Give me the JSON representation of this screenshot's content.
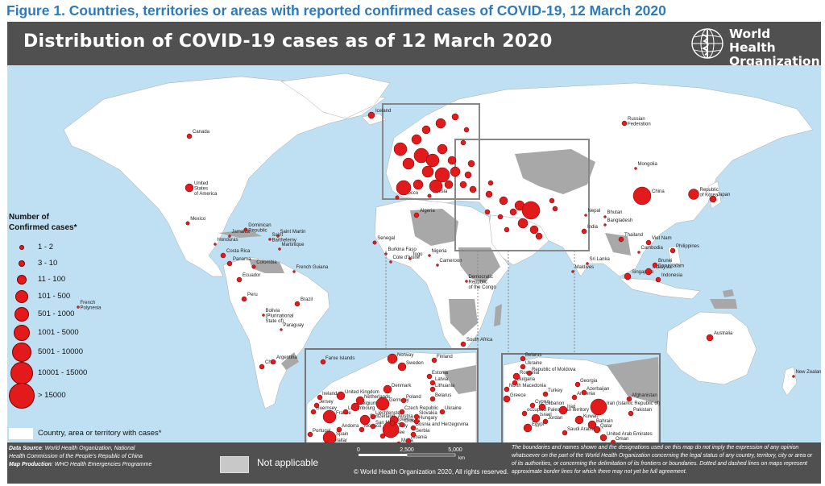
{
  "figure_title": "Figure 1. Countries, territories or areas with reported confirmed cases of COVID-19, 12 March 2020",
  "map_title": "Distribution of COVID-19  cases as of 12 March 2020",
  "organization": {
    "line1": "World Health",
    "line2": "Organization"
  },
  "colors": {
    "frame": "#505050",
    "ocean": "#bfe0f2",
    "land": "#ffffff",
    "not_applicable": "#a8a8a8",
    "case_marker": "#e31a1c"
  },
  "legend": {
    "title_line1": "Number of",
    "title_line2": "Confirmed cases*",
    "classes": [
      "1 - 2",
      "3 - 10",
      "11 - 100",
      "101 - 500",
      "501 - 1000",
      "1001 - 5000",
      "5001 - 10000",
      "10001 - 15000",
      "> 15000"
    ],
    "country_with_cases": "Country, area or territory with cases*"
  },
  "footer": {
    "source_label": "Data Source",
    "source_text": ": World Health Organization, National",
    "source_text2": "Health Commission of the People's Republic of China",
    "production_label": "Map Production",
    "production_text": ": WHO Health Emergencies Programme",
    "not_applicable": "Not applicable",
    "copyright": "© World Health Organization  2020,  All rights reserved.",
    "scale": {
      "t0": "0",
      "t1": "2,500",
      "t2": "5,000",
      "unit": "km"
    },
    "disclaimer": "The boundaries and names shown and the designations used on this map do not imply the expression of any opinion whatsoever on the part of the World Health Organization concerning the legal status of any country, territory, city or area or of its authorities, or concerning the delimitation of its frontiers or boundaries. Dotted and dashed lines on maps represent approximate border lines for which there may not yet be full agreement."
  },
  "countries": [
    {
      "name": "Iceland",
      "cls": 4
    },
    {
      "name": "Canada",
      "cls": 3
    },
    {
      "name": "United States of America",
      "cls": 5
    },
    {
      "name": "Mexico",
      "cls": 2
    },
    {
      "name": "Dominican Republic",
      "cls": 2
    },
    {
      "name": "Jamaica",
      "cls": 1
    },
    {
      "name": "Honduras",
      "cls": 1
    },
    {
      "name": "Saint Barthelemy",
      "cls": 1
    },
    {
      "name": "Saint Martin",
      "cls": 1
    },
    {
      "name": "Martinique",
      "cls": 1
    },
    {
      "name": "Costa Rica",
      "cls": 3
    },
    {
      "name": "Panama",
      "cls": 3
    },
    {
      "name": "Colombia",
      "cls": 2
    },
    {
      "name": "French Guiana",
      "cls": 1
    },
    {
      "name": "Ecuador",
      "cls": 3
    },
    {
      "name": "Peru",
      "cls": 3
    },
    {
      "name": "Bolivia (Plurinational State of)",
      "cls": 1
    },
    {
      "name": "Brazil",
      "cls": 3
    },
    {
      "name": "Paraguay",
      "cls": 1
    },
    {
      "name": "Chile",
      "cls": 3
    },
    {
      "name": "Argentina",
      "cls": 3
    },
    {
      "name": "French Polynesia",
      "cls": 1
    },
    {
      "name": "Morocco",
      "cls": 2
    },
    {
      "name": "Tunisia",
      "cls": 2
    },
    {
      "name": "Algeria",
      "cls": 3
    },
    {
      "name": "Senegal",
      "cls": 2
    },
    {
      "name": "Burkina Faso",
      "cls": 1
    },
    {
      "name": "Cote d'Ivoire",
      "cls": 1
    },
    {
      "name": "Togo",
      "cls": 1
    },
    {
      "name": "Nigeria",
      "cls": 1
    },
    {
      "name": "Cameroon",
      "cls": 1
    },
    {
      "name": "Democratic Republic of the Congo",
      "cls": 1
    },
    {
      "name": "South Africa",
      "cls": 3
    },
    {
      "name": "Russian Federation",
      "cls": 3
    },
    {
      "name": "Mongolia",
      "cls": 1
    },
    {
      "name": "China",
      "cls": 9
    },
    {
      "name": "Republic of Korea",
      "cls": 6
    },
    {
      "name": "Japan",
      "cls": 4
    },
    {
      "name": "Nepal",
      "cls": 1
    },
    {
      "name": "Bhutan",
      "cls": 1
    },
    {
      "name": "Bangladesh",
      "cls": 1
    },
    {
      "name": "India",
      "cls": 3
    },
    {
      "name": "Sri Lanka",
      "cls": 1
    },
    {
      "name": "Maldives",
      "cls": 1
    },
    {
      "name": "Thailand",
      "cls": 3
    },
    {
      "name": "Viet Nam",
      "cls": 3
    },
    {
      "name": "Cambodia",
      "cls": 1
    },
    {
      "name": "Philippines",
      "cls": 3
    },
    {
      "name": "Brunei Darussalam",
      "cls": 3
    },
    {
      "name": "Malaysia",
      "cls": 4
    },
    {
      "name": "Singapore",
      "cls": 4
    },
    {
      "name": "Indonesia",
      "cls": 3
    },
    {
      "name": "Australia",
      "cls": 4
    },
    {
      "name": "New Zealand",
      "cls": 1
    }
  ],
  "europe_inset": {
    "labels": [
      "Faroe Islands",
      "Norway",
      "Finland",
      "Sweden",
      "Estonia",
      "Latvia",
      "Lithuania",
      "Denmark",
      "Ireland",
      "United Kingdom",
      "Netherlands",
      "Belgium",
      "Luxembourg",
      "Germany",
      "Poland",
      "Belarus",
      "Czech Republic",
      "Slovakia",
      "Ukraine",
      "Hungary",
      "Austria",
      "Switzerland",
      "Liechtenstein",
      "France",
      "Guernsey",
      "Jersey",
      "Monaco",
      "San Marino",
      "Andorra",
      "Italy",
      "Slovenia",
      "Croatia",
      "Bosnia and Herzegovina",
      "Serbia",
      "Albania",
      "Portugal",
      "Spain",
      "Gibraltar",
      "Holy See",
      "Malta"
    ]
  },
  "middle_east_inset": {
    "labels": [
      "Belarus",
      "Ukraine",
      "Republic of Moldova",
      "Romania",
      "Bulgaria",
      "North Macedonia",
      "Georgia",
      "Azerbaijan",
      "Armenia",
      "Turkey",
      "Greece",
      "Cyprus",
      "Lebanon",
      "occupied Palestinian territory",
      "Israel",
      "Jordan",
      "Iraq",
      "Iran (Islamic Republic of)",
      "Kuwait",
      "Bahrain",
      "Qatar",
      "Saudi Arabia",
      "United Arab Emirates",
      "Oman",
      "Egypt",
      "Afghanistan",
      "Pakistan"
    ]
  }
}
